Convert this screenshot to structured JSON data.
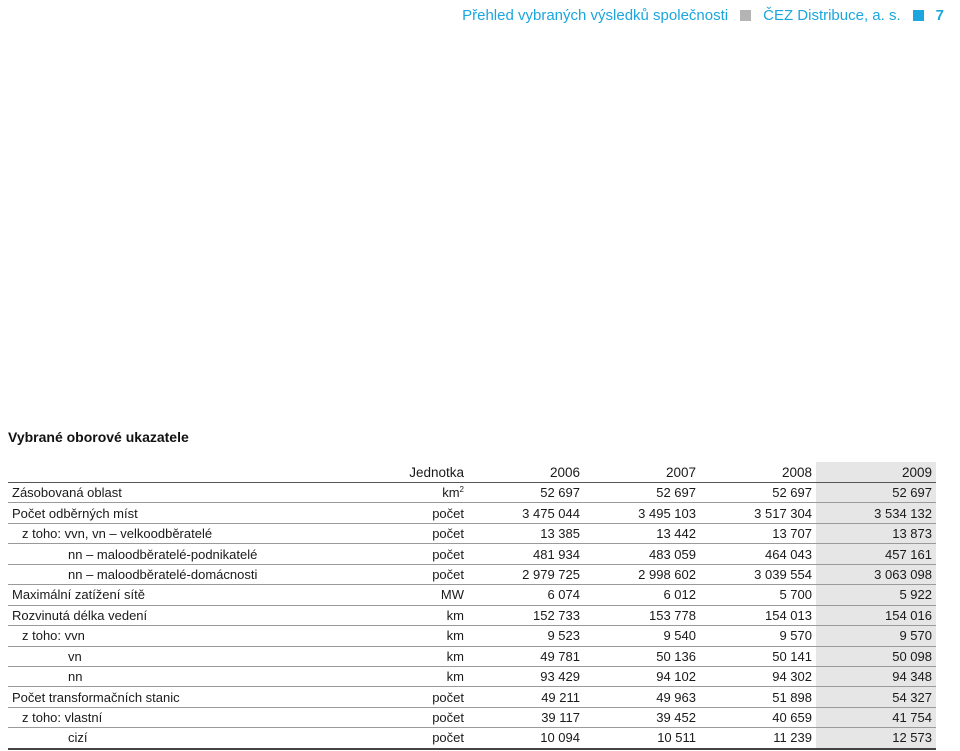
{
  "header": {
    "title": "Přehled vybraných výsledků společnosti",
    "company": "ČEZ Distribuce, a. s.",
    "page_number": "7"
  },
  "section_title": "Vybrané oborové ukazatele",
  "table": {
    "columns": [
      "",
      "Jednotka",
      "2006",
      "2007",
      "2008",
      "2009"
    ],
    "rows": [
      {
        "label": "Zásobovaná oblast",
        "unit": "km",
        "unit_sup": "2",
        "values": [
          "52 697",
          "52 697",
          "52 697",
          "52 697"
        ],
        "indent": 0
      },
      {
        "label": "Počet odběrných míst",
        "unit": "počet",
        "values": [
          "3 475 044",
          "3 495 103",
          "3 517 304",
          "3 534 132"
        ],
        "indent": 0
      },
      {
        "label": "z toho: vvn, vn – velkoodběratelé",
        "unit": "počet",
        "values": [
          "13 385",
          "13 442",
          "13 707",
          "13 873"
        ],
        "indent": 1
      },
      {
        "label": "nn – maloodběratelé-podnikatelé",
        "unit": "počet",
        "values": [
          "481 934",
          "483 059",
          "464 043",
          "457 161"
        ],
        "indent": 2
      },
      {
        "label": "nn – maloodběratelé-domácnosti",
        "unit": "počet",
        "values": [
          "2 979 725",
          "2 998 602",
          "3 039 554",
          "3 063 098"
        ],
        "indent": 2
      },
      {
        "label": "Maximální zatížení sítě",
        "unit": "MW",
        "values": [
          "6 074",
          "6 012",
          "5 700",
          "5 922"
        ],
        "indent": 0
      },
      {
        "label": "Rozvinutá délka vedení",
        "unit": "km",
        "values": [
          "152 733",
          "153 778",
          "154 013",
          "154 016"
        ],
        "indent": 0
      },
      {
        "label": "z toho: vvn",
        "unit": "km",
        "values": [
          "9 523",
          "9 540",
          "9 570",
          "9 570"
        ],
        "indent": 1
      },
      {
        "label": "vn",
        "unit": "km",
        "values": [
          "49 781",
          "50 136",
          "50 141",
          "50 098"
        ],
        "indent": 2
      },
      {
        "label": "nn",
        "unit": "km",
        "values": [
          "93 429",
          "94 102",
          "94 302",
          "94 348"
        ],
        "indent": 2
      },
      {
        "label": "Počet transformačních stanic",
        "unit": "počet",
        "values": [
          "49 211",
          "49 963",
          "51 898",
          "54 327"
        ],
        "indent": 0
      },
      {
        "label": "z toho: vlastní",
        "unit": "počet",
        "values": [
          "39 117",
          "39 452",
          "40 659",
          "41 754"
        ],
        "indent": 1
      },
      {
        "label": "cizí",
        "unit": "počet",
        "values": [
          "10 094",
          "10 511",
          "11 239",
          "12 573"
        ],
        "indent": 2
      }
    ]
  },
  "colors": {
    "accent": "#1ba6de",
    "grey_square": "#b4b4b4",
    "highlight_column": "#e6e6e6"
  }
}
